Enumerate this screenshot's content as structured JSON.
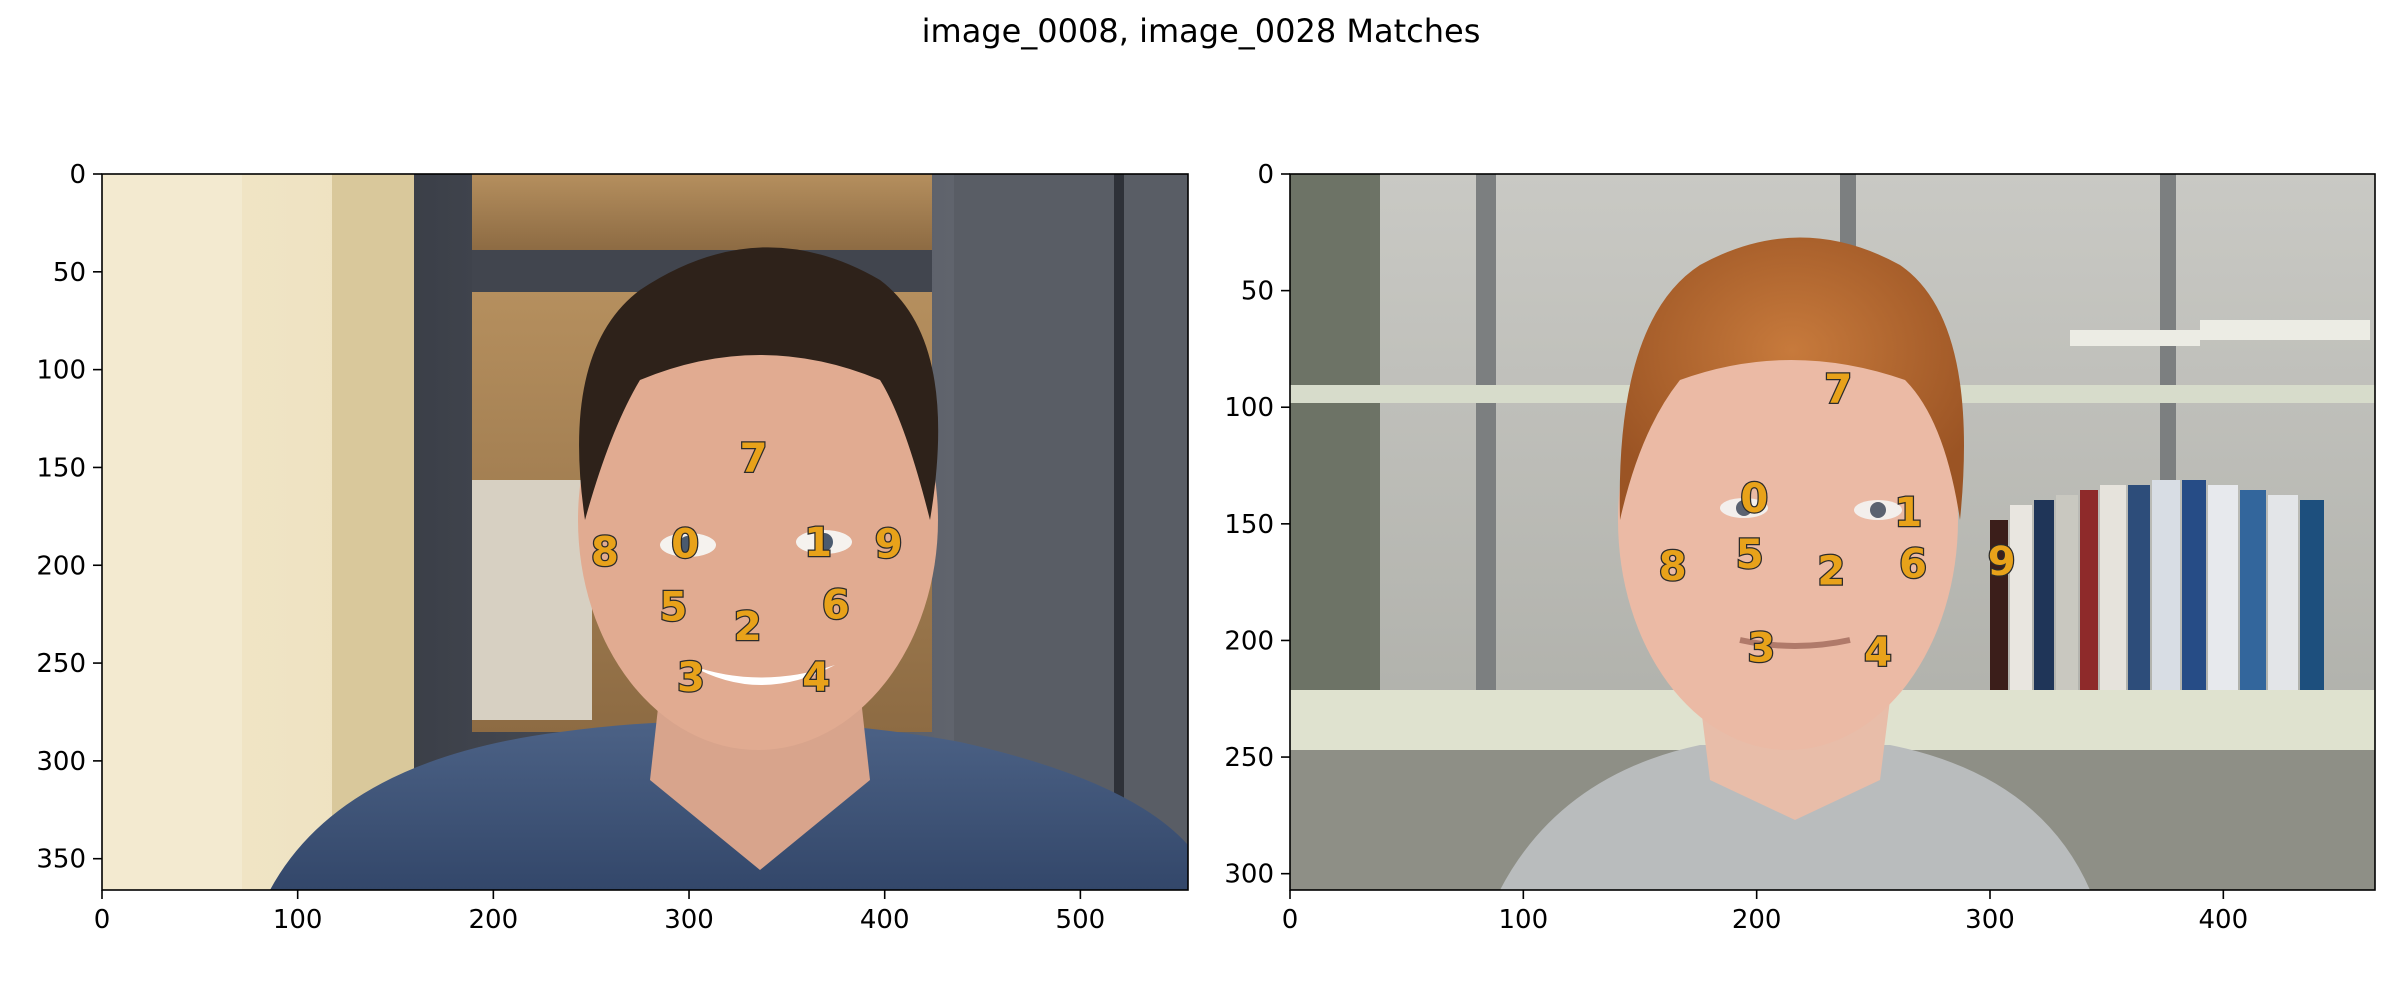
{
  "title": "image_0008, image_0028 Matches",
  "colors": {
    "marker_fill": "#e8a21a",
    "marker_stroke": "#2b2b2b",
    "axis": "#000000"
  },
  "chart_data": [
    {
      "type": "scatter",
      "image": "left photo",
      "xlim": [
        0,
        555
      ],
      "ylim": [
        366,
        0
      ],
      "xticks": [
        "0",
        "100",
        "200",
        "300",
        "400",
        "500"
      ],
      "yticks": [
        "0",
        "50",
        "100",
        "150",
        "200",
        "250",
        "300",
        "350"
      ],
      "points": [
        {
          "label": "0",
          "x": 298,
          "y": 189
        },
        {
          "label": "1",
          "x": 366,
          "y": 188
        },
        {
          "label": "2",
          "x": 330,
          "y": 231
        },
        {
          "label": "3",
          "x": 301,
          "y": 257
        },
        {
          "label": "4",
          "x": 365,
          "y": 257
        },
        {
          "label": "5",
          "x": 292,
          "y": 221
        },
        {
          "label": "6",
          "x": 375,
          "y": 220
        },
        {
          "label": "7",
          "x": 333,
          "y": 145
        },
        {
          "label": "8",
          "x": 257,
          "y": 193
        },
        {
          "label": "9",
          "x": 402,
          "y": 189
        }
      ]
    },
    {
      "type": "scatter",
      "image": "right photo",
      "xlim": [
        0,
        465
      ],
      "ylim": [
        307,
        0
      ],
      "xticks": [
        "0",
        "100",
        "200",
        "300",
        "400"
      ],
      "yticks": [
        "0",
        "50",
        "100",
        "150",
        "200",
        "250",
        "300"
      ],
      "points": [
        {
          "label": "0",
          "x": 199,
          "y": 139
        },
        {
          "label": "1",
          "x": 265,
          "y": 145
        },
        {
          "label": "2",
          "x": 232,
          "y": 170
        },
        {
          "label": "3",
          "x": 202,
          "y": 203
        },
        {
          "label": "4",
          "x": 252,
          "y": 205
        },
        {
          "label": "5",
          "x": 197,
          "y": 163
        },
        {
          "label": "6",
          "x": 267,
          "y": 167
        },
        {
          "label": "7",
          "x": 235,
          "y": 92
        },
        {
          "label": "8",
          "x": 164,
          "y": 168
        },
        {
          "label": "9",
          "x": 305,
          "y": 166
        }
      ]
    }
  ]
}
